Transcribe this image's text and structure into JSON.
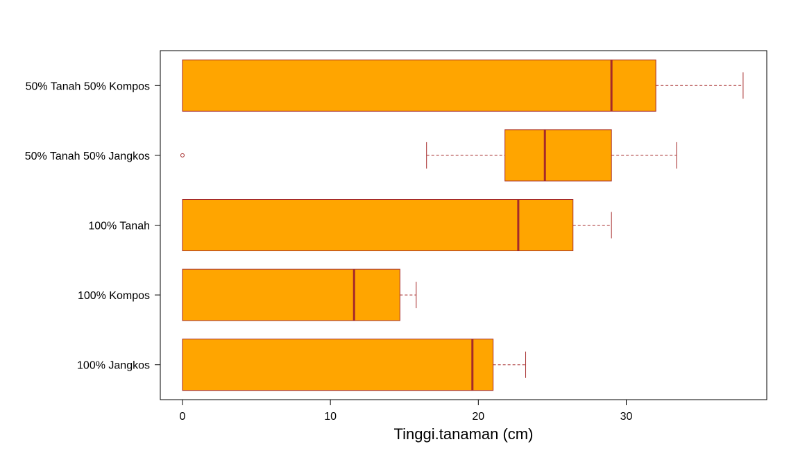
{
  "chart_data": {
    "type": "boxplot",
    "orientation": "horizontal",
    "title": "",
    "xlabel": "Tinggi.tanaman (cm)",
    "ylabel": "",
    "xlim": [
      -1.5,
      39.5
    ],
    "xticks": [
      0,
      10,
      20,
      30
    ],
    "xtick_labels": [
      "0",
      "10",
      "20",
      "30"
    ],
    "grid": false,
    "legend": "none",
    "colors": {
      "box_fill": "#FFA500",
      "stroke": "#A52A2A"
    },
    "categories": [
      "100% Jangkos",
      "100% Kompos",
      "100% Tanah",
      "50% Tanah 50% Jangkos",
      "50% Tanah 50% Kompos"
    ],
    "series": [
      {
        "min": 0,
        "q1": 0,
        "median": 19.6,
        "q3": 21.0,
        "max": 23.2,
        "outliers": []
      },
      {
        "min": 0,
        "q1": 0,
        "median": 11.6,
        "q3": 14.7,
        "max": 15.8,
        "outliers": []
      },
      {
        "min": 0,
        "q1": 0,
        "median": 22.7,
        "q3": 26.4,
        "max": 29.0,
        "outliers": []
      },
      {
        "min": 16.5,
        "q1": 21.8,
        "median": 24.5,
        "q3": 29.0,
        "max": 33.4,
        "outliers": [
          0
        ]
      },
      {
        "min": 0,
        "q1": 0,
        "median": 29.0,
        "q3": 32.0,
        "max": 37.9,
        "outliers": []
      }
    ]
  }
}
